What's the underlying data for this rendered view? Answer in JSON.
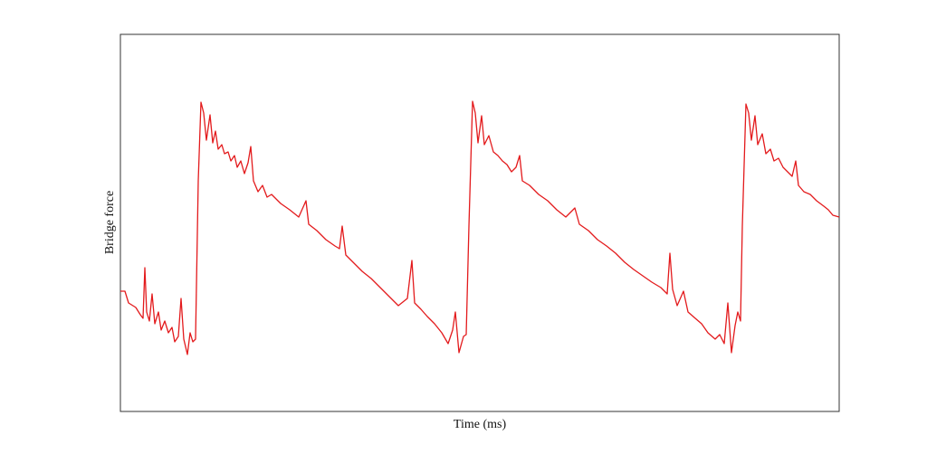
{
  "chart_data": {
    "type": "line",
    "xlabel": "Time (ms)",
    "ylabel": "Bridge force",
    "color": "#e31a1c",
    "xlim": [
      0,
      794
    ],
    "ylim": [
      0,
      417
    ],
    "x": [
      0,
      5,
      9,
      17,
      22,
      25,
      27,
      29,
      32,
      35,
      38,
      42,
      45,
      49,
      53,
      57,
      60,
      64,
      67,
      70,
      74,
      77,
      80,
      83,
      86,
      89,
      92,
      95,
      99,
      102,
      105,
      108,
      112,
      115,
      119,
      122,
      126,
      129,
      133,
      137,
      141,
      144,
      147,
      152,
      157,
      162,
      167,
      177,
      187,
      197,
      205,
      208,
      217,
      227,
      237,
      242,
      245,
      249,
      257,
      267,
      277,
      287,
      297,
      307,
      317,
      322,
      325,
      332,
      339,
      347,
      355,
      362,
      367,
      370,
      374,
      379,
      382,
      385,
      389,
      392,
      395,
      399,
      402,
      407,
      412,
      417,
      422,
      427,
      432,
      437,
      441,
      444,
      452,
      462,
      472,
      482,
      492,
      502,
      507,
      517,
      527,
      537,
      547,
      557,
      567,
      577,
      587,
      597,
      604,
      607,
      610,
      615,
      622,
      627,
      635,
      642,
      649,
      657,
      662,
      667,
      671,
      675,
      679,
      682,
      685,
      687,
      691,
      694,
      697,
      701,
      704,
      709,
      713,
      718,
      722,
      727,
      732,
      737,
      742,
      746,
      749,
      755,
      762,
      769,
      777,
      782,
      787,
      794
    ],
    "values": [
      133,
      133,
      120,
      115,
      107,
      103,
      159,
      110,
      100,
      130,
      97,
      110,
      90,
      100,
      87,
      93,
      77,
      83,
      125,
      80,
      63,
      87,
      77,
      80,
      255,
      342,
      330,
      300,
      328,
      297,
      310,
      290,
      295,
      285,
      287,
      277,
      283,
      270,
      277,
      263,
      275,
      293,
      255,
      243,
      250,
      237,
      240,
      230,
      223,
      215,
      233,
      207,
      200,
      190,
      183,
      180,
      205,
      173,
      165,
      155,
      147,
      137,
      127,
      117,
      125,
      167,
      120,
      113,
      105,
      97,
      87,
      75,
      90,
      110,
      65,
      83,
      85,
      205,
      343,
      330,
      297,
      327,
      295,
      305,
      287,
      283,
      277,
      273,
      265,
      270,
      283,
      255,
      250,
      240,
      233,
      223,
      215,
      225,
      207,
      200,
      190,
      183,
      175,
      165,
      157,
      150,
      143,
      137,
      130,
      175,
      135,
      117,
      133,
      110,
      103,
      97,
      87,
      80,
      85,
      75,
      120,
      65,
      95,
      110,
      100,
      205,
      340,
      330,
      300,
      327,
      295,
      307,
      285,
      290,
      277,
      280,
      270,
      265,
      260,
      277,
      250,
      243,
      240,
      233,
      227,
      223,
      217,
      215
    ]
  }
}
